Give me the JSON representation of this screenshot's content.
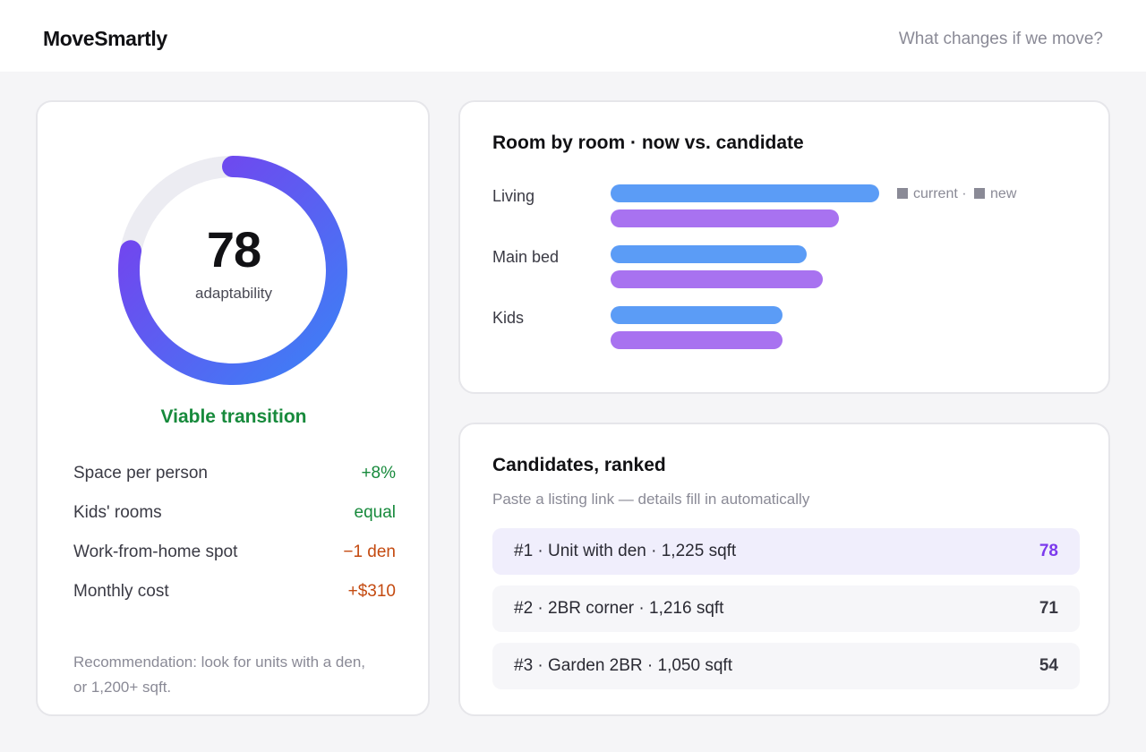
{
  "app": {
    "brand": "MoveSmartly",
    "nav_link": "What changes if we move?"
  },
  "score": {
    "value": 78,
    "max": 100,
    "label": "adaptability",
    "verdict": "Viable transition"
  },
  "metrics": [
    {
      "label": "Space per person",
      "value": "+8%",
      "tone": "positive"
    },
    {
      "label": "Kids' rooms",
      "value": "equal",
      "tone": "positive"
    },
    {
      "label": "Work-from-home spot",
      "value": "−1 den",
      "tone": "negative"
    },
    {
      "label": "Monthly cost",
      "value": "+$310",
      "tone": "negative"
    }
  ],
  "recommendation": "Recommendation: look for units with a den, or 1,200+ sqft.",
  "rooms": {
    "title": "Room by room · now vs. candidate",
    "legend": {
      "current": "current",
      "sep": "·",
      "new": "new"
    },
    "colors": {
      "current": "#5b9cf6",
      "new": "#a872f0"
    },
    "chart_data": {
      "type": "bar",
      "orientation": "horizontal",
      "categories": [
        "Living",
        "Main bed",
        "Kids"
      ],
      "series": [
        {
          "name": "current",
          "values": [
            100,
            73,
            64
          ]
        },
        {
          "name": "new",
          "values": [
            85,
            79,
            64
          ]
        }
      ],
      "xlim": [
        0,
        100
      ]
    }
  },
  "candidates": {
    "title": "Candidates, ranked",
    "subtitle": "Paste a listing link — details fill in automatically",
    "items": [
      {
        "text": "#1 · Unit with den · 1,225 sqft",
        "score": "78"
      },
      {
        "text": "#2 · 2BR corner · 1,216 sqft",
        "score": "71"
      },
      {
        "text": "#3 · Garden 2BR · 1,050 sqft",
        "score": "54"
      }
    ]
  },
  "gauge_colors": {
    "track": "#ececf2",
    "start": "#7c3aed",
    "end": "#3b82f6"
  }
}
